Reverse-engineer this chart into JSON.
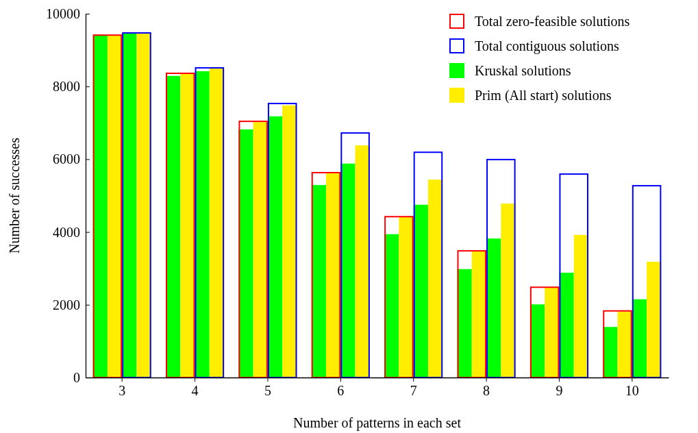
{
  "chart_data": {
    "type": "bar",
    "xlabel": "Number of patterns in each set",
    "ylabel": "Number of successes",
    "categories": [
      "3",
      "4",
      "5",
      "6",
      "7",
      "8",
      "9",
      "10"
    ],
    "ylim": [
      0,
      10000
    ],
    "yticks": [
      0,
      2000,
      4000,
      6000,
      8000,
      10000
    ],
    "legend": "top right",
    "series": [
      {
        "name": "Total zero-feasible solutions",
        "color": "#ff0000",
        "values": [
          9430,
          8380,
          7060,
          5650,
          4440,
          3500,
          2500,
          1850
        ]
      },
      {
        "name": "Kruskal solutions",
        "color": "#00ff00",
        "values": [
          9420,
          8290,
          6820,
          5290,
          3940,
          2980,
          2010,
          1390
        ]
      },
      {
        "name": "Prim (All start) solutions",
        "color": "#ffee00",
        "values": [
          9420,
          8360,
          7020,
          5610,
          4410,
          3470,
          2470,
          1810
        ]
      },
      {
        "name": "Total contiguous solutions",
        "color": "#0000ff",
        "values": [
          9490,
          8530,
          7550,
          6740,
          6210,
          6010,
          5610,
          5290
        ]
      },
      {
        "color": "#00ff00",
        "values": [
          9470,
          8420,
          7180,
          5880,
          4750,
          3820,
          2880,
          2150
        ]
      },
      {
        "color": "#ffee00",
        "values": [
          9470,
          8510,
          7480,
          6380,
          5440,
          4780,
          3920,
          3180
        ]
      }
    ]
  }
}
